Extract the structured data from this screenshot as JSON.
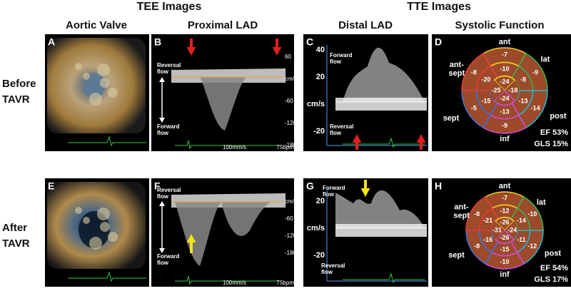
{
  "header": {
    "tee": "TEE Images",
    "tte": "TTE Images"
  },
  "columns": [
    "Aortic Valve",
    "Proximal LAD",
    "Distal LAD",
    "Systolic Function"
  ],
  "rows": [
    {
      "label": [
        "Before",
        "TAVR"
      ],
      "aortic": {
        "letter": "A"
      },
      "proximal": {
        "letter": "B",
        "reversal": [
          "Reversal",
          "flow"
        ],
        "forward": [
          "Forward",
          "flow"
        ],
        "scale": [
          "60",
          "cm/s",
          "-60",
          "-120",
          "-180"
        ],
        "speed": "100mm/s",
        "rate": "75bpm"
      },
      "distal": {
        "letter": "C",
        "forward": [
          "Forward",
          "flow"
        ],
        "reversal": [
          "Reversal",
          "flow"
        ],
        "scale": [
          "40",
          "20",
          "cm/s",
          "-20"
        ]
      },
      "bullseye": {
        "letter": "D",
        "ant": "ant",
        "antsept": [
          "ant-",
          "sept"
        ],
        "lat": "lat",
        "sept": "sept",
        "post": "post",
        "inf": "inf",
        "basal": [
          "-7",
          "-9",
          "-14",
          "-9",
          "-5",
          "-8"
        ],
        "mid": [
          "-10",
          "-8",
          "-13",
          "-13",
          "-15",
          "-20"
        ],
        "apical": [
          "-24",
          "-18",
          "-24",
          "-25"
        ],
        "ef": "EF 53%",
        "gls": "GLS 15%"
      }
    },
    {
      "label": [
        "After",
        "TAVR"
      ],
      "aortic": {
        "letter": "E"
      },
      "proximal": {
        "letter": "F",
        "reversal": [
          "Reversal",
          "flow"
        ],
        "forward": [
          "Forward",
          "flow"
        ],
        "scale": [
          "cm/s",
          "-60",
          "-120",
          "-180"
        ],
        "speed": "100mm/s",
        "rate": "75bpm"
      },
      "distal": {
        "letter": "G",
        "forward": [
          "Forward",
          "flow"
        ],
        "reversal": [
          "Reversal",
          "flow"
        ],
        "scale": [
          "20",
          "cm/s",
          "-20"
        ]
      },
      "bullseye": {
        "letter": "H",
        "ant": "ant",
        "antsept": [
          "ant-",
          "sept"
        ],
        "lat": "lat",
        "sept": "sept",
        "post": "post",
        "inf": "inf",
        "basal": [
          "-7",
          "-10",
          "-12",
          "-10",
          "-8",
          "-8"
        ],
        "mid": [
          "-12",
          "-14",
          "-11",
          "-15",
          "-16",
          "-21"
        ],
        "apical": [
          "-26",
          "-24",
          "-26",
          "-31"
        ],
        "ef": "EF 54%",
        "gls": "GLS 17%"
      }
    }
  ]
}
